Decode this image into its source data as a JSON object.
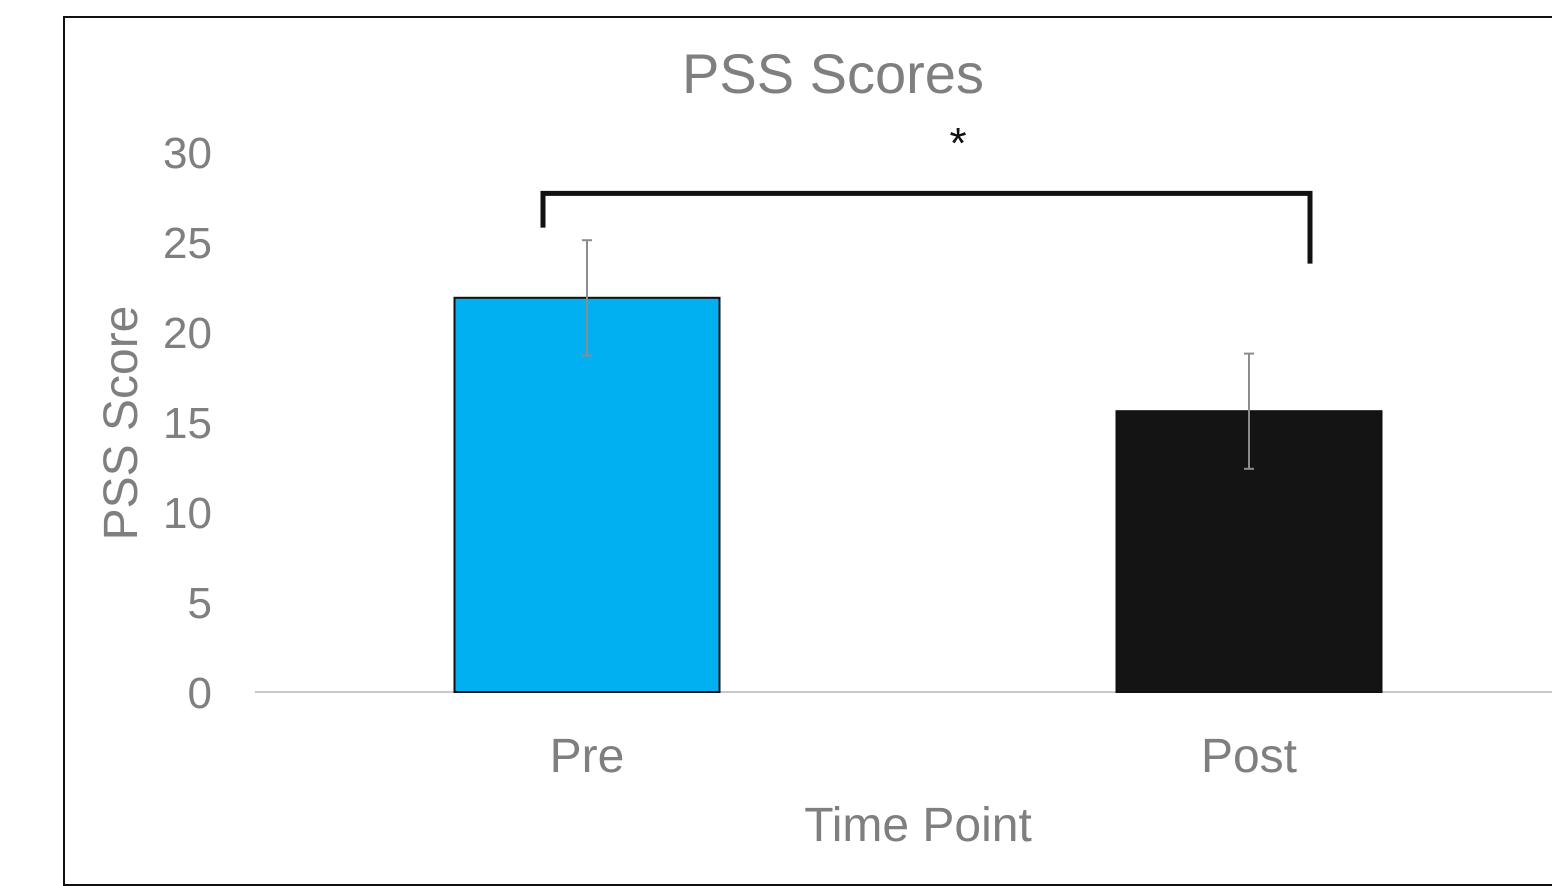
{
  "chart_data": {
    "type": "bar",
    "title": "PSS Scores",
    "xlabel": "Time Point",
    "ylabel": "PSS Score",
    "categories": [
      "Pre",
      "Post"
    ],
    "values": [
      21.9,
      15.6
    ],
    "error": [
      3.2,
      3.2
    ],
    "ylim": [
      0,
      30
    ],
    "yticks": [
      "0",
      "5",
      "10",
      "15",
      "20",
      "25",
      "30"
    ],
    "bar_colors": [
      "#00b0f0",
      "#141414"
    ],
    "grid": false,
    "significance": {
      "label": "*",
      "between": [
        "Pre",
        "Post"
      ]
    }
  }
}
